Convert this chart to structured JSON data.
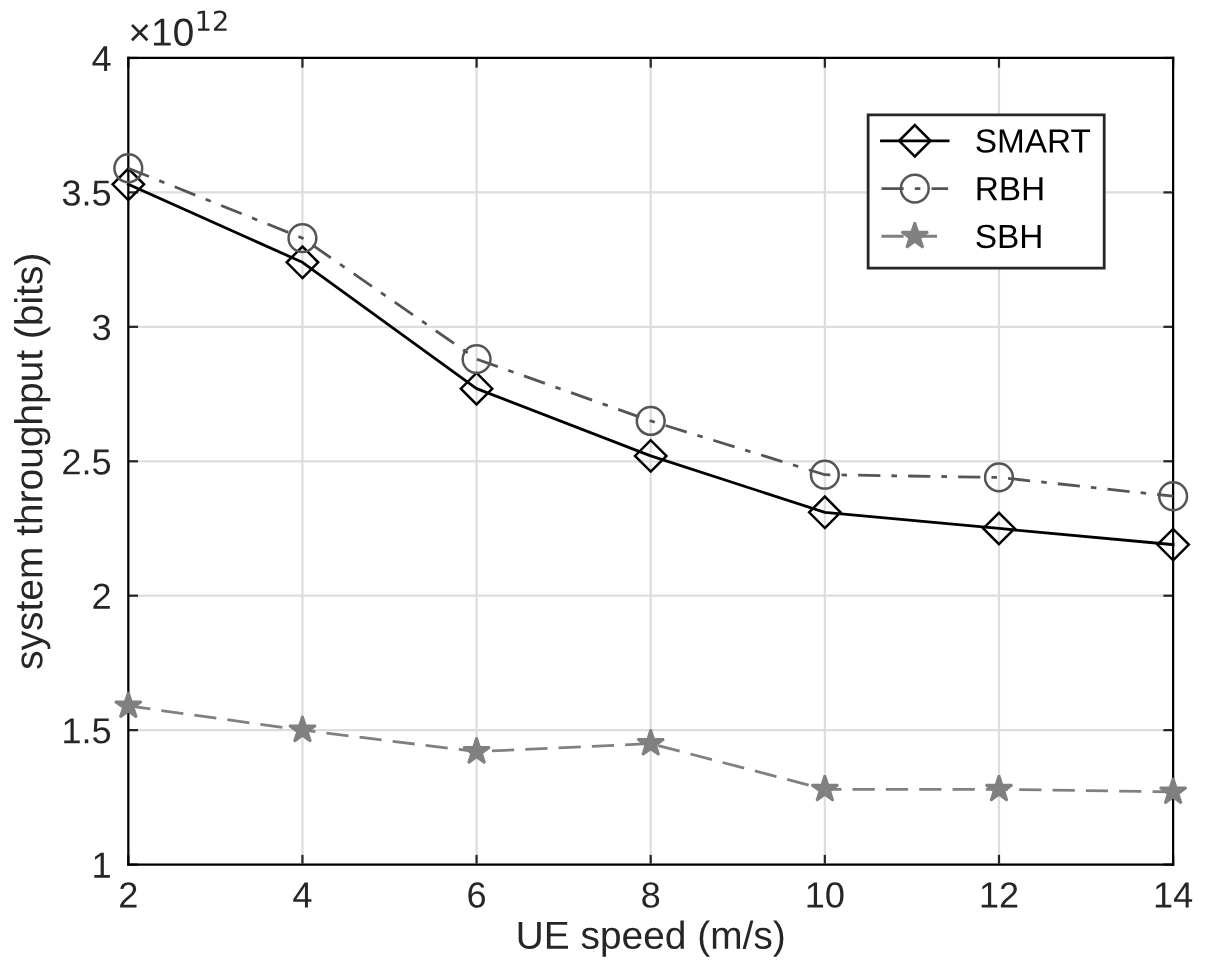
{
  "chart_data": {
    "type": "line",
    "xlabel": "UE speed (m/s)",
    "ylabel": "system throughput (bits)",
    "annotations": [
      "×10$^{12}$"
    ],
    "x": [
      2,
      4,
      6,
      8,
      10,
      12,
      14
    ],
    "series": [
      {
        "name": "SMART",
        "color": "#000000",
        "marker": "diamond",
        "line_style": "solid",
        "values": [
          3.53,
          3.24,
          2.77,
          2.52,
          2.31,
          2.25,
          2.19
        ]
      },
      {
        "name": "RBH",
        "color": "#555555",
        "marker": "circle",
        "line_style": "dashdot",
        "values": [
          3.59,
          3.33,
          2.88,
          2.65,
          2.45,
          2.44,
          2.37
        ]
      },
      {
        "name": "SBH",
        "color": "#808080",
        "marker": "star",
        "line_style": "dashed",
        "values": [
          1.59,
          1.5,
          1.42,
          1.45,
          1.28,
          1.28,
          1.27
        ]
      }
    ],
    "xlim": [
      2,
      14
    ],
    "xticks": [
      2,
      4,
      6,
      8,
      10,
      12,
      14
    ],
    "ylim": [
      1,
      4
    ],
    "yticks": [
      1,
      1.5,
      2,
      2.5,
      3,
      3.5,
      4
    ],
    "grid": true,
    "legend": "top right"
  }
}
